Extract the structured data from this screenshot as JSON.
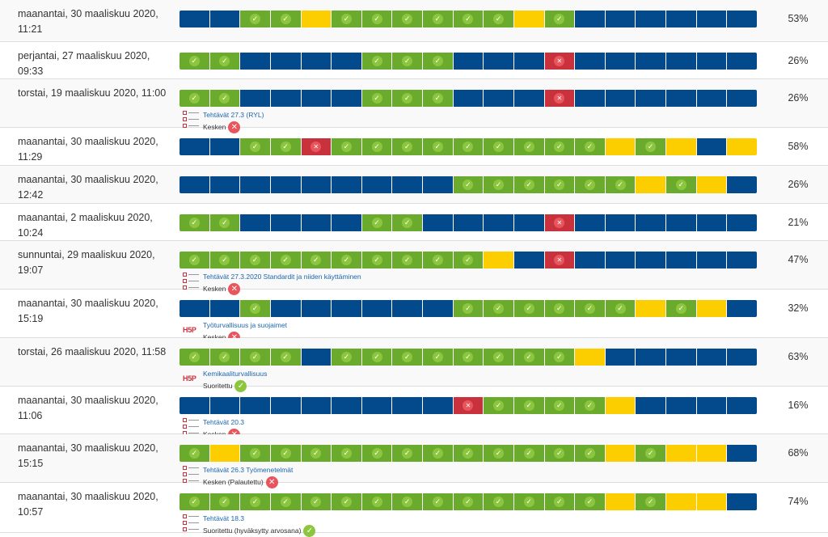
{
  "legend": {
    "colors": {
      "b": "#024a8b",
      "g": "#6aab2e",
      "y": "#fcce00",
      "r": "#c9323c"
    },
    "icons": {
      "g": "check-icon",
      "r": "cross-icon"
    }
  },
  "rows": [
    {
      "date": "maanantai, 30 maaliskuu 2020, 11:21",
      "percent": "53%",
      "cells": "bbggyggggggygbbbbb",
      "attempt": null
    },
    {
      "date": "perjantai, 27 maaliskuu 2020, 09:33",
      "percent": "26%",
      "cells": "ggbbbbgggbbbrbbbbb",
      "attempt": null
    },
    {
      "date": "torstai, 19 maaliskuu 2020, 11:00",
      "percent": "26%",
      "cells": "ggbbbbgggbbbrbbbbb",
      "attempt": {
        "type": "list",
        "title": "Tehtävät 27.3 (RYL)",
        "status": "Kesken",
        "ok": false
      }
    },
    {
      "date": "maanantai, 30 maaliskuu 2020, 11:29",
      "percent": "58%",
      "cells": "bbggrgggggggggygybyb",
      "attempt": null
    },
    {
      "date": "maanantai, 30 maaliskuu 2020, 12:42",
      "percent": "26%",
      "cells": "bbbbbbbbbggggggygyby",
      "attempt": null
    },
    {
      "date": "maanantai, 2 maaliskuu 2020, 10:24",
      "percent": "21%",
      "cells": "ggbbbbggbbbbrbbbbb",
      "attempt": null
    },
    {
      "date": "sunnuntai, 29 maaliskuu 2020, 19:07",
      "percent": "47%",
      "cells": "ggggggggggybrbbbbb",
      "attempt": {
        "type": "list",
        "title": "Tehtävät 27.3.2020 Standardit ja niiden käyttäminen",
        "status": "Kesken",
        "ok": false
      }
    },
    {
      "date": "maanantai, 30 maaliskuu 2020, 15:19",
      "percent": "32%",
      "cells": "bbgbbbbbbggggggygybbbb",
      "attempt": {
        "type": "h5p",
        "title": "Työturvallisuus ja suojaimet",
        "status": "Kesken",
        "ok": false
      }
    },
    {
      "date": "torstai, 26 maaliskuu 2020, 11:58",
      "percent": "63%",
      "cells": "ggggbggggggggybbbbb",
      "attempt": {
        "type": "h5p",
        "title": "Kemikaaliturvallisuus",
        "status": "Suoritettu",
        "ok": true
      }
    },
    {
      "date": "maanantai, 30 maaliskuu 2020, 11:06",
      "percent": "16%",
      "cells": "bbbbbbbbbrggggybbbbb",
      "attempt": {
        "type": "list",
        "title": "Tehtävät 20.3",
        "status": "Kesken",
        "ok": false
      }
    },
    {
      "date": "maanantai, 30 maaliskuu 2020, 15:15",
      "percent": "68%",
      "cells": "gyggggggggggggygyybb",
      "attempt": {
        "type": "list",
        "title": "Tehtävät 26.3 Työmenetelmät",
        "status": "Kesken (Palautettu)",
        "ok": false
      }
    },
    {
      "date": "maanantai, 30 maaliskuu 2020, 10:57",
      "percent": "74%",
      "cells": "ggggggggggggggygyybb",
      "attempt": {
        "type": "list",
        "title": "Tehtävät 18.3",
        "status": "Suoritettu (hyväksytty arvosana)",
        "ok": true
      }
    }
  ]
}
